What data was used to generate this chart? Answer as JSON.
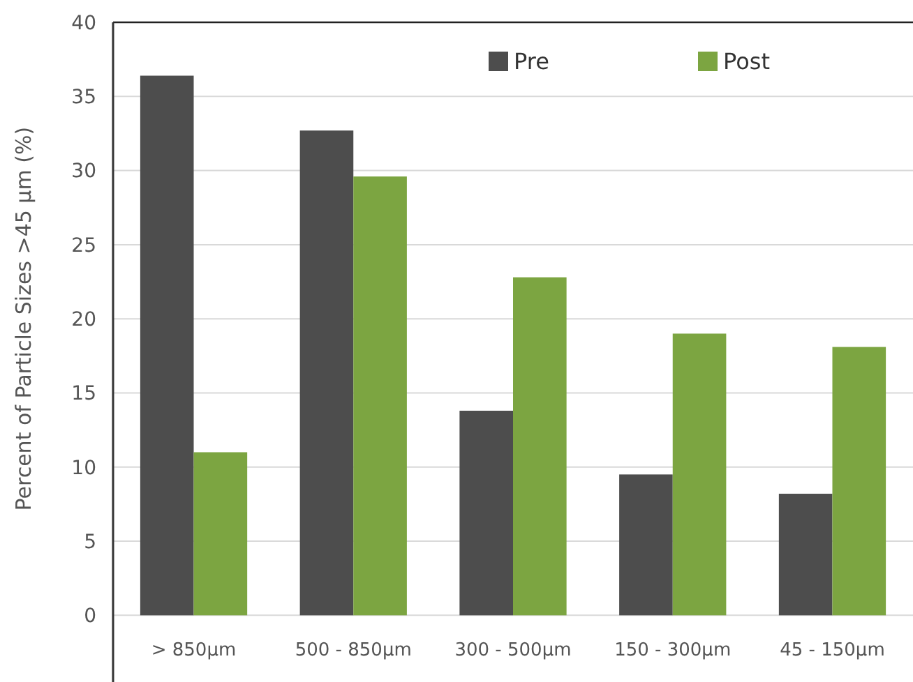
{
  "chart_data": {
    "type": "bar",
    "ylabel": "Percent of Particle Sizes >45 µm (%)",
    "categories": [
      "> 850µm",
      "500 - 850µm",
      "300 - 500µm",
      "150 - 300µm",
      "45 - 150µm"
    ],
    "series": [
      {
        "name": "Pre",
        "color": "#4d4d4d",
        "values": [
          36.4,
          32.7,
          13.8,
          9.5,
          8.2
        ]
      },
      {
        "name": "Post",
        "color": "#7ca541",
        "values": [
          11.0,
          29.6,
          22.8,
          19.0,
          18.1
        ]
      }
    ],
    "ylim": [
      -4.5,
      40
    ],
    "yticks": [
      0,
      5,
      10,
      15,
      20,
      25,
      30,
      35,
      40
    ],
    "grid": "y",
    "legend": "top right"
  }
}
